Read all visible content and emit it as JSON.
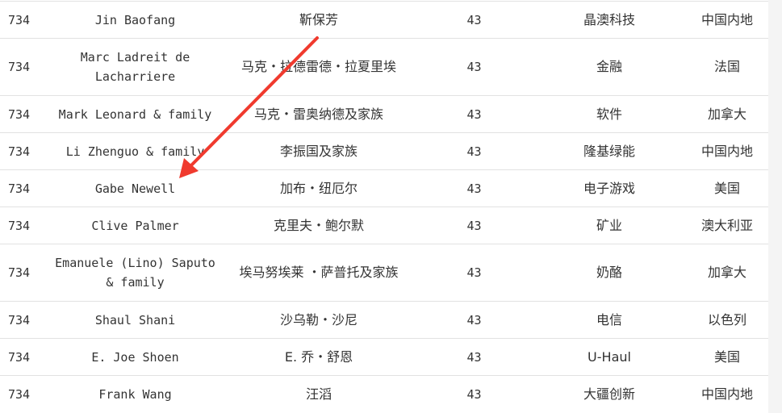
{
  "rows": [
    {
      "rank": "734",
      "name": "Jin Baofang",
      "name_cn": "靳保芳",
      "worth": "43",
      "industry": "晶澳科技",
      "country": "中国内地"
    },
    {
      "rank": "734",
      "name": "Marc Ladreit de Lacharriere",
      "name_cn": "马克・拉德雷德・拉夏里埃",
      "worth": "43",
      "industry": "金融",
      "country": "法国"
    },
    {
      "rank": "734",
      "name": "Mark Leonard & family",
      "name_cn": "马克・雷奥纳德及家族",
      "worth": "43",
      "industry": "软件",
      "country": "加拿大"
    },
    {
      "rank": "734",
      "name": "Li Zhenguo & family",
      "name_cn": "李振国及家族",
      "worth": "43",
      "industry": "隆基绿能",
      "country": "中国内地"
    },
    {
      "rank": "734",
      "name": "Gabe Newell",
      "name_cn": "加布・纽厄尔",
      "worth": "43",
      "industry": "电子游戏",
      "country": "美国"
    },
    {
      "rank": "734",
      "name": "Clive Palmer",
      "name_cn": "克里夫・鲍尔默",
      "worth": "43",
      "industry": "矿业",
      "country": "澳大利亚"
    },
    {
      "rank": "734",
      "name": "Emanuele (Lino) Saputo & family",
      "name_cn": "埃马努埃莱 ・萨普托及家族",
      "worth": "43",
      "industry": "奶酪",
      "country": "加拿大"
    },
    {
      "rank": "734",
      "name": "Shaul Shani",
      "name_cn": "沙乌勒・沙尼",
      "worth": "43",
      "industry": "电信",
      "country": "以色列"
    },
    {
      "rank": "734",
      "name": "E. Joe Shoen",
      "name_cn": "E. 乔・舒恩",
      "worth": "43",
      "industry": "U-Haul",
      "country": "美国"
    },
    {
      "rank": "734",
      "name": "Frank Wang",
      "name_cn": "汪滔",
      "worth": "43",
      "industry": "大疆创新",
      "country": "中国内地"
    }
  ],
  "annotation": {
    "type": "arrow",
    "color": "#f03a2e",
    "points_to": "Gabe Newell"
  }
}
